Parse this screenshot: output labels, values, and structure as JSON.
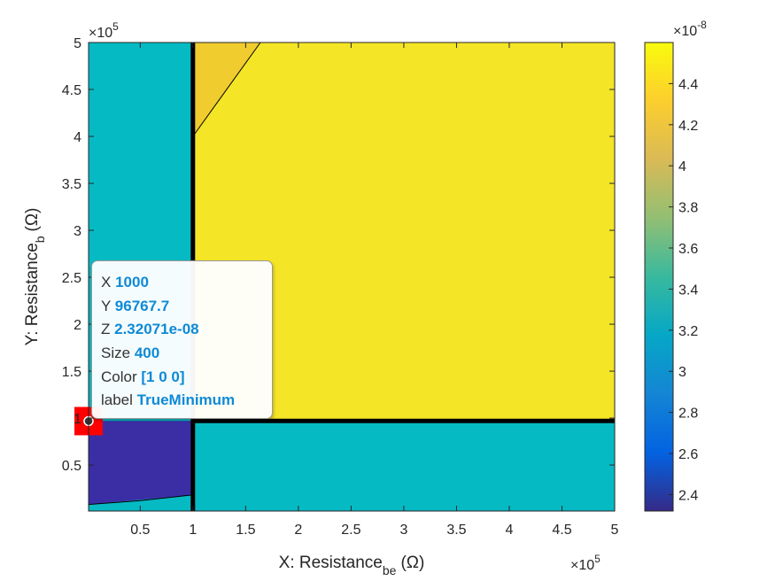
{
  "chart_data": {
    "type": "heatmap",
    "title": "",
    "xlabel": {
      "main": "X: Resistance",
      "sub": "be",
      "unit": "(Ω)"
    },
    "ylabel": {
      "main": "Y: Resistance",
      "sub": "b",
      "unit": "(Ω)"
    },
    "x_exponent": {
      "base": "×10",
      "power": "5"
    },
    "y_exponent": {
      "base": "×10",
      "power": "5"
    },
    "c_exponent": {
      "base": "×10",
      "power": "-8"
    },
    "xlim": [
      1000,
      500000
    ],
    "ylim": [
      1000,
      500000
    ],
    "x_ticks": [
      {
        "value": 50000,
        "label": "0.5"
      },
      {
        "value": 100000,
        "label": "1"
      },
      {
        "value": 150000,
        "label": "1.5"
      },
      {
        "value": 200000,
        "label": "2"
      },
      {
        "value": 250000,
        "label": "2.5"
      },
      {
        "value": 300000,
        "label": "3"
      },
      {
        "value": 350000,
        "label": "3.5"
      },
      {
        "value": 400000,
        "label": "4"
      },
      {
        "value": 450000,
        "label": "4.5"
      },
      {
        "value": 500000,
        "label": "5"
      }
    ],
    "y_ticks": [
      {
        "value": 50000,
        "label": "0.5"
      },
      {
        "value": 100000,
        "label": "1"
      },
      {
        "value": 150000,
        "label": "1.5"
      },
      {
        "value": 200000,
        "label": "2"
      },
      {
        "value": 250000,
        "label": "2.5"
      },
      {
        "value": 300000,
        "label": "3"
      },
      {
        "value": 350000,
        "label": "3.5"
      },
      {
        "value": 400000,
        "label": "4"
      },
      {
        "value": 450000,
        "label": "4.5"
      },
      {
        "value": 500000,
        "label": "5"
      }
    ],
    "colorbar": {
      "colormap": "parula",
      "clim": [
        2.32e-08,
        4.6e-08
      ],
      "ticks": [
        {
          "value": 2.4e-08,
          "label": "2.4"
        },
        {
          "value": 2.6e-08,
          "label": "2.6"
        },
        {
          "value": 2.8e-08,
          "label": "2.8"
        },
        {
          "value": 3e-08,
          "label": "3"
        },
        {
          "value": 3.2e-08,
          "label": "3.2"
        },
        {
          "value": 3.4e-08,
          "label": "3.4"
        },
        {
          "value": 3.6e-08,
          "label": "3.6"
        },
        {
          "value": 3.8e-08,
          "label": "3.8"
        },
        {
          "value": 4e-08,
          "label": "4"
        },
        {
          "value": 4.2e-08,
          "label": "4.2"
        },
        {
          "value": 4.4e-08,
          "label": "4.4"
        }
      ],
      "stops": [
        "#352a87",
        "#0363e1",
        "#1485d4",
        "#06a7c6",
        "#38b99e",
        "#92bf73",
        "#d9ba56",
        "#fcce2e",
        "#f9fb0e"
      ]
    },
    "regions": [
      {
        "name": "left-column",
        "polygon": [
          [
            1000,
            1000
          ],
          [
            100000,
            1000
          ],
          [
            100000,
            500000
          ],
          [
            1000,
            500000
          ]
        ],
        "color": "#06bac4"
      },
      {
        "name": "bottom-right",
        "polygon": [
          [
            100000,
            1000
          ],
          [
            500000,
            1000
          ],
          [
            500000,
            97000
          ],
          [
            100000,
            97000
          ]
        ],
        "color": "#06bac4"
      },
      {
        "name": "upper-right",
        "polygon": [
          [
            100000,
            97000
          ],
          [
            500000,
            97000
          ],
          [
            500000,
            500000
          ],
          [
            100000,
            500000
          ]
        ],
        "color": "#f4e526"
      },
      {
        "name": "orange-wedge",
        "polygon": [
          [
            100000,
            400000
          ],
          [
            100000,
            500000
          ],
          [
            164000,
            500000
          ]
        ],
        "color": "#f0cc2e"
      },
      {
        "name": "min-region",
        "polygon": [
          [
            1000,
            8000
          ],
          [
            98000,
            18000
          ],
          [
            98000,
            97000
          ],
          [
            1000,
            97000
          ]
        ],
        "color": "#3b2ea5"
      },
      {
        "name": "min-region-strip",
        "polygon": [
          [
            98000,
            1000
          ],
          [
            100000,
            1000
          ],
          [
            100000,
            97000
          ],
          [
            98000,
            97000
          ]
        ],
        "color": "#3b2ea5"
      }
    ],
    "lines": [
      {
        "name": "vertical-boundary",
        "points": [
          [
            100000,
            1000
          ],
          [
            100000,
            500000
          ]
        ],
        "width": 5
      },
      {
        "name": "horizontal-boundary",
        "points": [
          [
            100000,
            97000
          ],
          [
            500000,
            97000
          ]
        ],
        "width": 5
      },
      {
        "name": "diagonal-boundary",
        "points": [
          [
            100000,
            400000
          ],
          [
            164000,
            500000
          ]
        ],
        "width": 1
      },
      {
        "name": "min-curve",
        "points": [
          [
            1000,
            8000
          ],
          [
            50000,
            12000
          ],
          [
            98000,
            18000
          ]
        ],
        "width": 1
      }
    ],
    "marker": {
      "x": 1000,
      "y": 96767.7,
      "z": 2.32071e-08,
      "size": 400,
      "color": "#ff0000"
    }
  },
  "datatip": [
    {
      "key": "X",
      "value": "1000"
    },
    {
      "key": "Y",
      "value": "96767.7"
    },
    {
      "key": "Z",
      "value": "2.32071e-08"
    },
    {
      "key": "Size",
      "value": "400"
    },
    {
      "key": "Color",
      "value": "[1 0 0]"
    },
    {
      "key": "label",
      "value": "TrueMinimum"
    }
  ]
}
